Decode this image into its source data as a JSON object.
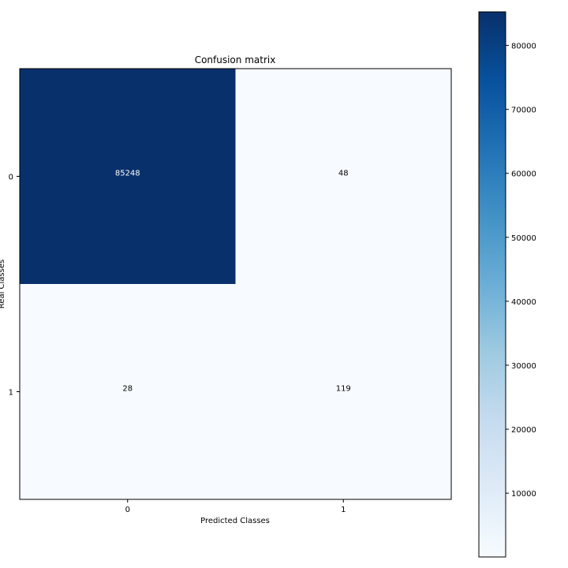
{
  "chart_data": {
    "type": "heatmap",
    "title": "Confusion matrix",
    "xlabel": "Predicted Classes",
    "ylabel": "Real Classes",
    "x_categories": [
      "0",
      "1"
    ],
    "y_categories": [
      "0",
      "1"
    ],
    "values": [
      [
        85248,
        48
      ],
      [
        28,
        119
      ]
    ],
    "colormap": "Blues",
    "colormap_low": "#f7fbff",
    "colormap_high": "#08306b",
    "colorbar": {
      "range": [
        28,
        85248
      ],
      "ticks": [
        10000,
        20000,
        30000,
        40000,
        50000,
        60000,
        70000,
        80000
      ],
      "tick_labels": [
        "10000",
        "20000",
        "30000",
        "40000",
        "50000",
        "60000",
        "70000",
        "80000"
      ],
      "placement": "right"
    },
    "cell_text_color_dark": "#ffffff",
    "cell_text_color_light": "#000000",
    "grid": false
  }
}
